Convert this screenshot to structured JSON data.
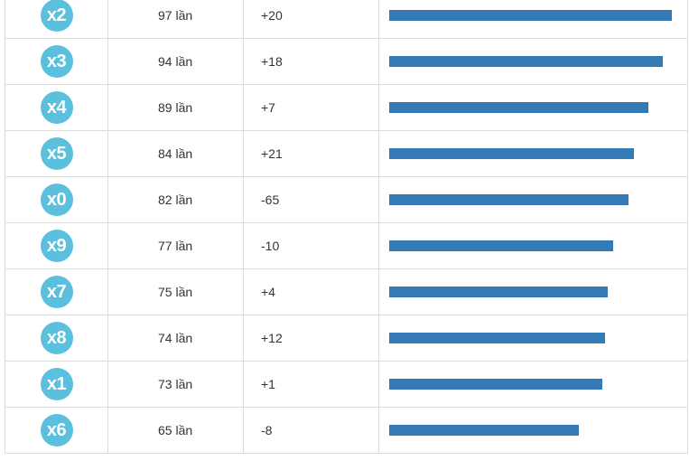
{
  "colors": {
    "badge": "#5bc0de",
    "bar": "#337ab7"
  },
  "rows": [
    {
      "badge": "x2",
      "count": "97 lần",
      "diff": "+20",
      "value": 97
    },
    {
      "badge": "x3",
      "count": "94 lần",
      "diff": "+18",
      "value": 94
    },
    {
      "badge": "x4",
      "count": "89 lần",
      "diff": "+7",
      "value": 89
    },
    {
      "badge": "x5",
      "count": "84 lần",
      "diff": "+21",
      "value": 84
    },
    {
      "badge": "x0",
      "count": "82 lần",
      "diff": "-65",
      "value": 82
    },
    {
      "badge": "x9",
      "count": "77 lần",
      "diff": "-10",
      "value": 77
    },
    {
      "badge": "x7",
      "count": "75 lần",
      "diff": "+4",
      "value": 75
    },
    {
      "badge": "x8",
      "count": "74 lần",
      "diff": "+12",
      "value": 74
    },
    {
      "badge": "x1",
      "count": "73 lần",
      "diff": "+1",
      "value": 73
    },
    {
      "badge": "x6",
      "count": "65 lần",
      "diff": "-8",
      "value": 65
    }
  ]
}
